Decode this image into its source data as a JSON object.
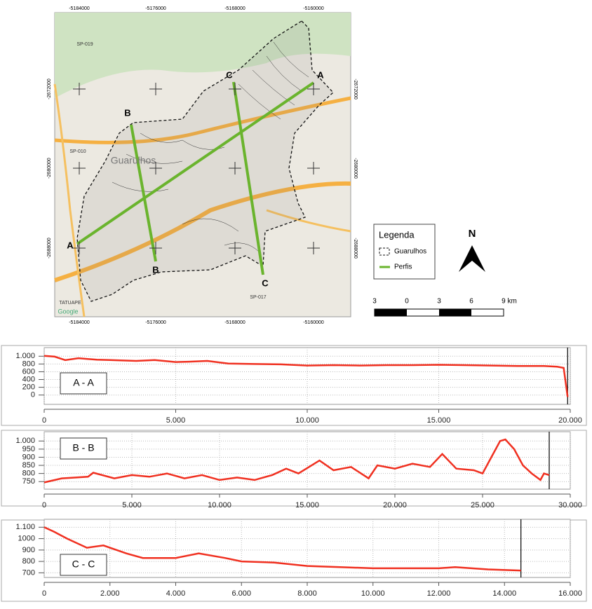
{
  "map": {
    "top_labels": [
      -5184000,
      -5176000,
      -5168000,
      -5160000
    ],
    "bottom_labels": [
      -5184000,
      -5176000,
      -5168000,
      -5160000
    ],
    "right_labels": [
      -2672000,
      -2680000,
      -2688000
    ],
    "left_labels": [
      -2672000,
      -2680000,
      -2688000
    ],
    "profile_labels": [
      "A",
      "A",
      "B",
      "B",
      "C",
      "C"
    ],
    "places": [
      "Guarulhos",
      "SP-019",
      "SP-010",
      "SP-017",
      "TATUAPE",
      "Google"
    ],
    "legend_title": "Legenda",
    "legend_items": [
      "Guarulhos",
      "Perfis"
    ],
    "north": "N",
    "scale_labels": [
      3,
      0,
      3,
      6
    ],
    "scale_last": "9 km"
  },
  "chart_data": [
    {
      "type": "line",
      "title": "A - A",
      "color": "#f03020",
      "x": [
        0,
        400,
        800,
        1300,
        2000,
        2500,
        3500,
        4200,
        5000,
        5500,
        6200,
        7000,
        8000,
        9000,
        10000,
        11000,
        12000,
        13000,
        14000,
        15000,
        16000,
        17000,
        18000,
        19000,
        19500,
        19750,
        19900
      ],
      "values": [
        1010,
        990,
        900,
        950,
        910,
        900,
        880,
        900,
        850,
        860,
        880,
        810,
        800,
        790,
        760,
        770,
        760,
        770,
        770,
        780,
        770,
        760,
        750,
        750,
        730,
        700,
        -50
      ],
      "xlim": [
        0,
        20000
      ],
      "ylim": [
        -150,
        1150
      ],
      "xticks": [
        0,
        {
          "value": 5000,
          "label": "5.000"
        },
        {
          "value": 10000,
          "label": "10.000"
        },
        {
          "value": 15000,
          "label": "15.000"
        },
        {
          "value": 20000,
          "label": "20.000"
        }
      ],
      "yticks": [
        0,
        200,
        400,
        600,
        800,
        {
          "value": 1000,
          "label": "1.000"
        }
      ],
      "grid": true
    },
    {
      "type": "line",
      "title": "B - B",
      "color": "#f03020",
      "x": [
        0,
        1000,
        2500,
        2800,
        4000,
        5000,
        6000,
        7000,
        8000,
        9000,
        10000,
        11000,
        12000,
        13000,
        13800,
        14500,
        15700,
        16500,
        17500,
        18500,
        19000,
        20000,
        21000,
        22000,
        22700,
        23500,
        24500,
        25000,
        25500,
        26000,
        26300,
        26800,
        27300,
        27800,
        28300,
        28500,
        28800
      ],
      "values": [
        745,
        770,
        780,
        805,
        770,
        790,
        780,
        800,
        770,
        790,
        760,
        775,
        760,
        790,
        830,
        800,
        880,
        820,
        840,
        770,
        850,
        830,
        860,
        840,
        920,
        830,
        820,
        800,
        900,
        1000,
        1010,
        950,
        850,
        800,
        760,
        800,
        790
      ],
      "xlim": [
        0,
        30000
      ],
      "ylim": [
        725,
        1040
      ],
      "xticks": [
        0,
        {
          "value": 5000,
          "label": "5.000"
        },
        {
          "value": 10000,
          "label": "10.000"
        },
        {
          "value": 15000,
          "label": "15.000"
        },
        {
          "value": 20000,
          "label": "20.000"
        },
        {
          "value": 25000,
          "label": "25.000"
        },
        {
          "value": 30000,
          "label": "30.000"
        }
      ],
      "yticks": [
        750,
        800,
        850,
        900,
        950,
        {
          "value": 1000,
          "label": "1.000"
        }
      ],
      "grid": true
    },
    {
      "type": "line",
      "title": "C - C",
      "color": "#f03020",
      "x": [
        0,
        300,
        700,
        1300,
        1800,
        2500,
        3000,
        4000,
        4700,
        5500,
        6000,
        7000,
        8000,
        9000,
        10000,
        12000,
        12500,
        13500,
        14500
      ],
      "values": [
        1100,
        1060,
        1000,
        920,
        940,
        870,
        830,
        830,
        870,
        830,
        800,
        790,
        760,
        750,
        740,
        740,
        750,
        730,
        720
      ],
      "xlim": [
        0,
        16000
      ],
      "ylim": [
        690,
        1145
      ],
      "xticks": [
        0,
        {
          "value": 2000,
          "label": "2.000"
        },
        {
          "value": 4000,
          "label": "4.000"
        },
        {
          "value": 6000,
          "label": "6.000"
        },
        {
          "value": 8000,
          "label": "8.000"
        },
        {
          "value": 10000,
          "label": "10.000"
        },
        {
          "value": 12000,
          "label": "12.000"
        },
        {
          "value": 14000,
          "label": "14.000"
        },
        {
          "value": 16000,
          "label": "16.000"
        }
      ],
      "yticks": [
        700,
        800,
        900,
        1000,
        {
          "value": 1100,
          "label": "1.100"
        }
      ],
      "grid": true
    }
  ]
}
